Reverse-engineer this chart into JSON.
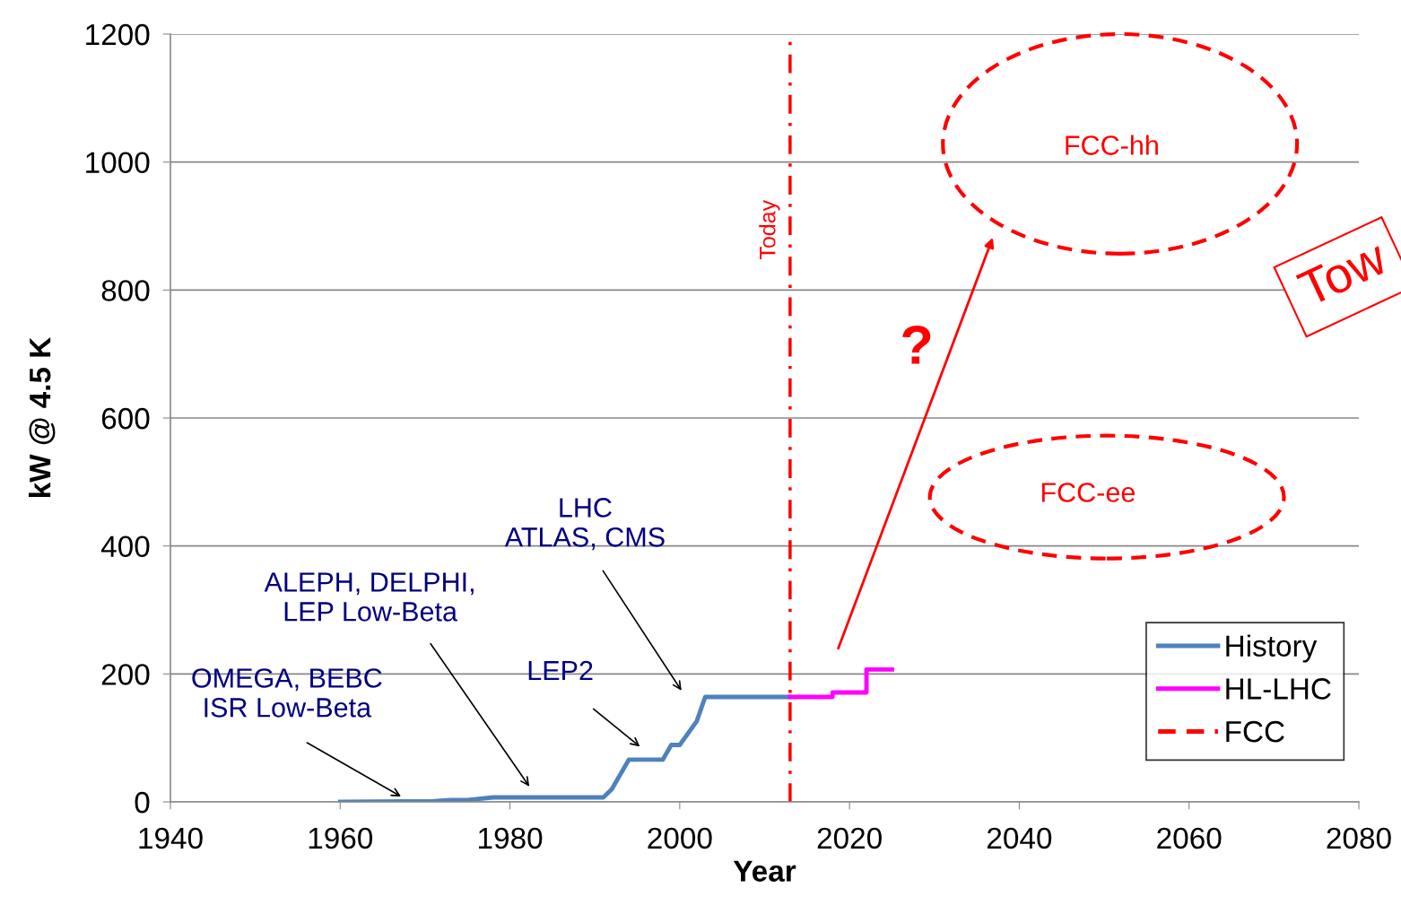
{
  "chart_data": {
    "type": "line",
    "xlabel": "Year",
    "ylabel": "kW @ 4.5 K",
    "xlim": [
      1940,
      2080
    ],
    "xticks": [
      1940,
      1960,
      1980,
      2000,
      2020,
      2040,
      2060,
      2080
    ],
    "ylim": [
      0,
      1200
    ],
    "yticks": [
      0,
      200,
      400,
      600,
      800,
      1000,
      1200
    ],
    "grid": "y",
    "legend": "bottom right",
    "series": [
      {
        "name": "History",
        "color": "#4f81bd",
        "line_style": "solid",
        "x": [
          1960,
          1971,
          1973,
          1975,
          1978,
          1991,
          1992,
          1994,
          1998,
          1999,
          2000,
          2002,
          2003,
          2013
        ],
        "values": [
          0,
          1,
          3,
          3,
          7,
          7,
          20,
          66,
          66,
          89,
          89,
          126,
          164,
          164
        ]
      },
      {
        "name": "HL-LHC",
        "color": "#ff00ff",
        "line_style": "solid",
        "x": [
          2013,
          2018,
          2018,
          2022,
          2022,
          2025
        ],
        "values": [
          164,
          164,
          171,
          171,
          207,
          207
        ]
      },
      {
        "name": "FCC",
        "color": "#ff0000",
        "line_style": "dashed"
      }
    ],
    "ref_lines": [
      {
        "axis": "x",
        "value": 2013,
        "label": "Today",
        "color": "#ff0000",
        "line_style": "dashdot"
      }
    ],
    "annotations": [
      "OMEGA, BEBC\nISR Low-Beta",
      "ALEPH, DELPHI,\nLEP Low-Beta",
      "LEP2",
      "LHC\nATLAS, CMS",
      "?",
      "FCC-hh",
      "FCC-ee",
      "Tow"
    ]
  }
}
